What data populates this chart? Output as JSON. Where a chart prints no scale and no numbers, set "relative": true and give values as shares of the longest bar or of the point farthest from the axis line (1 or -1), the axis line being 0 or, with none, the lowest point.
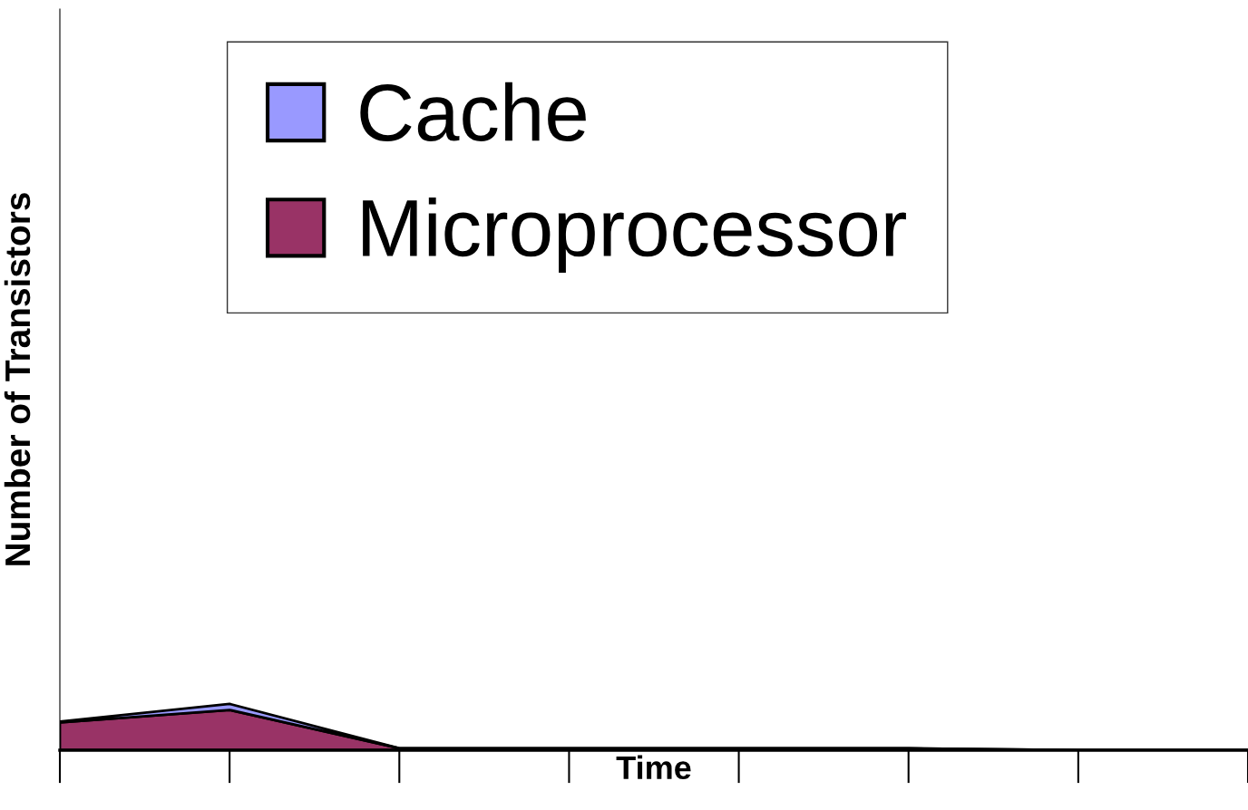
{
  "chart_data": {
    "type": "area",
    "stacked": true,
    "relative": true,
    "xlabel": "Time",
    "ylabel": "Number of Transistors",
    "categories": [
      null,
      null,
      null,
      null,
      null,
      null,
      null,
      null
    ],
    "series": [
      {
        "name": "Microprocessor",
        "color": "#993366",
        "values": [
          0.6,
          0.87,
          0.04,
          0.04,
          0.04,
          0.04,
          0,
          0
        ]
      },
      {
        "name": "Cache",
        "color": "#9999ff",
        "values": [
          0.02,
          0.13,
          0,
          0,
          0,
          0,
          0,
          0
        ]
      }
    ],
    "legend": "top left",
    "grid": false
  }
}
